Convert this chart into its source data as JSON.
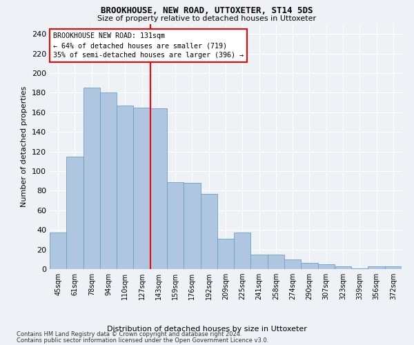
{
  "title": "BROOKHOUSE, NEW ROAD, UTTOXETER, ST14 5DS",
  "subtitle": "Size of property relative to detached houses in Uttoxeter",
  "xlabel": "Distribution of detached houses by size in Uttoxeter",
  "ylabel": "Number of detached properties",
  "categories": [
    "45sqm",
    "61sqm",
    "78sqm",
    "94sqm",
    "110sqm",
    "127sqm",
    "143sqm",
    "159sqm",
    "176sqm",
    "192sqm",
    "209sqm",
    "225sqm",
    "241sqm",
    "258sqm",
    "274sqm",
    "290sqm",
    "307sqm",
    "323sqm",
    "339sqm",
    "356sqm",
    "372sqm"
  ],
  "values": [
    37,
    115,
    185,
    180,
    167,
    165,
    164,
    89,
    88,
    77,
    31,
    37,
    15,
    15,
    10,
    6,
    5,
    3,
    1,
    3,
    3
  ],
  "bar_color": "#aec6e0",
  "bar_edge_color": "#6ca0c8",
  "vline_color": "red",
  "vline_x_index": 5.5,
  "annotation_line1": "BROOKHOUSE NEW ROAD: 131sqm",
  "annotation_line2": "← 64% of detached houses are smaller (719)",
  "annotation_line3": "35% of semi-detached houses are larger (396) →",
  "ylim": [
    0,
    250
  ],
  "yticks": [
    0,
    20,
    40,
    60,
    80,
    100,
    120,
    140,
    160,
    180,
    200,
    220,
    240
  ],
  "footer_line1": "Contains HM Land Registry data © Crown copyright and database right 2024.",
  "footer_line2": "Contains public sector information licensed under the Open Government Licence v3.0.",
  "background_color": "#eef2f7",
  "grid_color": "#ffffff"
}
